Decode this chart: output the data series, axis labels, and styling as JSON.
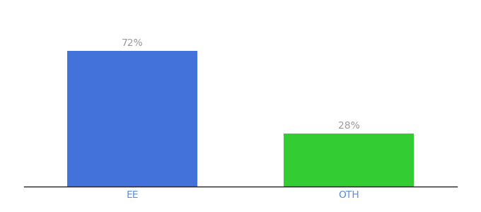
{
  "categories": [
    "EE",
    "OTH"
  ],
  "values": [
    72,
    28
  ],
  "bar_colors": [
    "#4472db",
    "#33cc33"
  ],
  "ylim": [
    0,
    90
  ],
  "background_color": "#ffffff",
  "bar_width": 0.6,
  "label_fontsize": 10,
  "tick_fontsize": 10,
  "tick_color": "#5b8dd9",
  "label_color": "#999999",
  "spine_color": "#222222",
  "xlim": [
    -0.5,
    1.5
  ]
}
